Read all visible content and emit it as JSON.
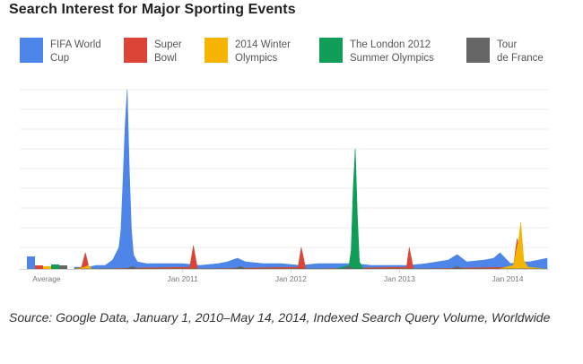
{
  "title": "Search Interest for Major Sporting Events",
  "source": "Source: Google Data, January 1, 2010–May 14, 2014, Indexed Search Query Volume, Worldwide",
  "chart_data": {
    "type": "area",
    "title": "Search Interest for Major Sporting Events",
    "xlabel": "",
    "ylabel": "",
    "x_range": [
      "2010-01-01",
      "2014-05-14"
    ],
    "x_ticks": [
      "Jan 2011",
      "Jan 2012",
      "Jan 2013",
      "Jan 2014"
    ],
    "average_label": "Average",
    "ylim": [
      0,
      100
    ],
    "grid": true,
    "legend_position": "top",
    "series": [
      {
        "name": "FIFA World Cup",
        "color": "#4d86e8",
        "average": 7,
        "points": [
          [
            "2010-01-01",
            1
          ],
          [
            "2010-02-15",
            1
          ],
          [
            "2010-03-15",
            2
          ],
          [
            "2010-04-15",
            2
          ],
          [
            "2010-05-10",
            5
          ],
          [
            "2010-05-31",
            12
          ],
          [
            "2010-06-07",
            22
          ],
          [
            "2010-06-14",
            50
          ],
          [
            "2010-06-21",
            80
          ],
          [
            "2010-06-28",
            100
          ],
          [
            "2010-07-05",
            55
          ],
          [
            "2010-07-12",
            22
          ],
          [
            "2010-07-19",
            8
          ],
          [
            "2010-08-01",
            4
          ],
          [
            "2010-09-01",
            3
          ],
          [
            "2010-11-01",
            3
          ],
          [
            "2011-01-01",
            3
          ],
          [
            "2011-03-01",
            2
          ],
          [
            "2011-05-01",
            3
          ],
          [
            "2011-06-01",
            4
          ],
          [
            "2011-07-05",
            6
          ],
          [
            "2011-08-01",
            4
          ],
          [
            "2011-10-01",
            3
          ],
          [
            "2011-12-01",
            3
          ],
          [
            "2012-02-01",
            2
          ],
          [
            "2012-04-01",
            3
          ],
          [
            "2012-06-01",
            3
          ],
          [
            "2012-08-01",
            3
          ],
          [
            "2012-10-01",
            2
          ],
          [
            "2012-12-01",
            2
          ],
          [
            "2013-02-01",
            2
          ],
          [
            "2013-04-01",
            3
          ],
          [
            "2013-06-15",
            5
          ],
          [
            "2013-07-15",
            8
          ],
          [
            "2013-08-15",
            4
          ],
          [
            "2013-10-15",
            5
          ],
          [
            "2013-11-15",
            6
          ],
          [
            "2013-12-06",
            9
          ],
          [
            "2014-01-10",
            3
          ],
          [
            "2014-02-15",
            4
          ],
          [
            "2014-03-15",
            4
          ],
          [
            "2014-04-15",
            5
          ],
          [
            "2014-05-14",
            6
          ]
        ]
      },
      {
        "name": "Super Bowl",
        "color": "#db4437",
        "average": 2,
        "points": [
          [
            "2010-01-01",
            0
          ],
          [
            "2010-01-25",
            1
          ],
          [
            "2010-02-07",
            9
          ],
          [
            "2010-02-20",
            0
          ],
          [
            "2011-01-25",
            1
          ],
          [
            "2011-02-06",
            13
          ],
          [
            "2011-02-20",
            0
          ],
          [
            "2012-01-25",
            1
          ],
          [
            "2012-02-05",
            12
          ],
          [
            "2012-02-20",
            0
          ],
          [
            "2013-01-25",
            1
          ],
          [
            "2013-02-03",
            12
          ],
          [
            "2013-02-17",
            0
          ],
          [
            "2014-01-20",
            1
          ],
          [
            "2014-02-02",
            17
          ],
          [
            "2014-02-16",
            0
          ],
          [
            "2014-05-14",
            0
          ]
        ]
      },
      {
        "name": "2014 Winter Olympics",
        "color": "#f4b400",
        "average": 1.5,
        "points": [
          [
            "2010-01-01",
            0
          ],
          [
            "2010-02-05",
            1
          ],
          [
            "2010-02-16",
            2
          ],
          [
            "2010-03-01",
            0
          ],
          [
            "2013-12-01",
            0
          ],
          [
            "2014-01-20",
            2
          ],
          [
            "2014-02-07",
            16
          ],
          [
            "2014-02-14",
            26
          ],
          [
            "2014-02-24",
            5
          ],
          [
            "2014-03-10",
            1
          ],
          [
            "2014-05-14",
            0
          ]
        ]
      },
      {
        "name": "The London 2012 Summer Olympics",
        "color": "#0f9d58",
        "average": 2.5,
        "points": [
          [
            "2010-01-01",
            0
          ],
          [
            "2012-06-01",
            0
          ],
          [
            "2012-07-15",
            2
          ],
          [
            "2012-07-22",
            10
          ],
          [
            "2012-07-29",
            45
          ],
          [
            "2012-08-05",
            67
          ],
          [
            "2012-08-12",
            30
          ],
          [
            "2012-08-19",
            4
          ],
          [
            "2012-09-01",
            0
          ],
          [
            "2014-05-14",
            0
          ]
        ]
      },
      {
        "name": "Tour de France",
        "color": "#666666",
        "average": 2,
        "points": [
          [
            "2010-01-01",
            0
          ],
          [
            "2010-06-25",
            0
          ],
          [
            "2010-07-15",
            1.5
          ],
          [
            "2010-08-01",
            0
          ],
          [
            "2011-06-25",
            0
          ],
          [
            "2011-07-15",
            1.5
          ],
          [
            "2011-08-01",
            0
          ],
          [
            "2012-06-25",
            0
          ],
          [
            "2012-07-15",
            1.5
          ],
          [
            "2012-08-01",
            0
          ],
          [
            "2013-06-25",
            0
          ],
          [
            "2013-07-15",
            1.5
          ],
          [
            "2013-08-01",
            0
          ],
          [
            "2014-05-14",
            0
          ]
        ]
      }
    ]
  }
}
